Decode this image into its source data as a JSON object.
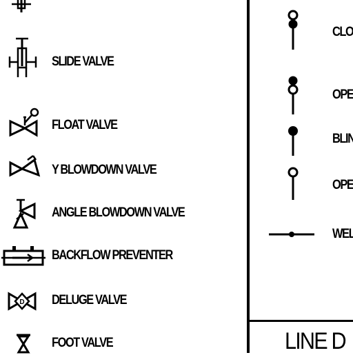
{
  "left_legend": [
    {
      "icon": "top-cut-valve-icon",
      "label": ""
    },
    {
      "icon": "slide-valve-icon",
      "label": "SLIDE VALVE"
    },
    {
      "icon": "float-valve-icon",
      "label": "FLOAT VALVE"
    },
    {
      "icon": "y-blowdown-valve-icon",
      "label": "Y BLOWDOWN VALVE"
    },
    {
      "icon": "angle-blowdown-valve-icon",
      "label": "ANGLE BLOWDOWN VALVE"
    },
    {
      "icon": "backflow-preventer-icon",
      "label": "BACKFLOW PREVENTER"
    },
    {
      "icon": "deluge-valve-icon",
      "label": "DELUGE VALVE"
    },
    {
      "icon": "foot-valve-icon",
      "label": "FOOT VALVE"
    }
  ],
  "right_legend": [
    {
      "icon": "closed-blind-icon",
      "label": "CLO"
    },
    {
      "icon": "open-blind-icon",
      "label": "OPE"
    },
    {
      "icon": "blind-icon",
      "label": "BLIN"
    },
    {
      "icon": "open-icon",
      "label": "OPE"
    },
    {
      "icon": "weld-icon",
      "label": "WEL"
    }
  ],
  "section_title": "LINE D"
}
